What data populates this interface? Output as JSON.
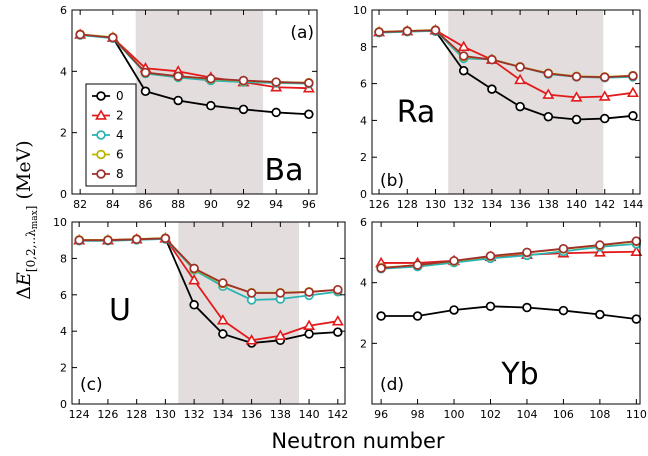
{
  "colors": {
    "0": "#000000",
    "2": "#e31a1c",
    "4": "#2ab3b3",
    "6": "#b8b400",
    "8": "#a0302b",
    "shade": "#e3dedd"
  },
  "xlabel": "Neutron number",
  "ylabel": "ΔE[0,2,..λmax] (MeV)",
  "legend": {
    "placement": "left, inside panel (a)",
    "entries": [
      "0",
      "2",
      "4",
      "6",
      "8"
    ]
  },
  "chart_data": [
    {
      "type": "line",
      "panel": "(a)",
      "element": "Ba",
      "shaded_range": [
        85.4,
        93.2
      ],
      "xlim": [
        81.5,
        96.5
      ],
      "ylim": [
        0,
        6
      ],
      "xticks": [
        82,
        84,
        86,
        88,
        90,
        92,
        94,
        96
      ],
      "yticks": [
        0,
        2,
        4,
        6
      ],
      "x": [
        82,
        84,
        86,
        88,
        90,
        92,
        94,
        96
      ],
      "series": [
        {
          "name": "0",
          "marker": "circle",
          "values": [
            5.2,
            5.1,
            3.35,
            3.05,
            2.88,
            2.76,
            2.66,
            2.6
          ]
        },
        {
          "name": "2",
          "marker": "triangle",
          "values": [
            5.2,
            5.1,
            4.1,
            4.0,
            3.8,
            3.65,
            3.48,
            3.45
          ]
        },
        {
          "name": "4",
          "marker": "circle",
          "values": [
            5.2,
            5.1,
            3.95,
            3.82,
            3.72,
            3.67,
            3.64,
            3.62
          ]
        },
        {
          "name": "6",
          "marker": "circle",
          "values": [
            5.2,
            5.1,
            3.95,
            3.83,
            3.74,
            3.68,
            3.64,
            3.62
          ]
        },
        {
          "name": "8",
          "marker": "circle",
          "values": [
            5.2,
            5.1,
            3.96,
            3.84,
            3.76,
            3.7,
            3.65,
            3.62
          ]
        }
      ]
    },
    {
      "type": "line",
      "panel": "(b)",
      "element": "Ra",
      "shaded_range": [
        130.9,
        141.9
      ],
      "xlim": [
        125.5,
        144.5
      ],
      "ylim": [
        0,
        10
      ],
      "xticks": [
        126,
        128,
        130,
        132,
        134,
        136,
        138,
        140,
        142,
        144
      ],
      "yticks": [
        0,
        2,
        4,
        6,
        8,
        10
      ],
      "x": [
        126,
        128,
        130,
        132,
        134,
        136,
        138,
        140,
        142,
        144
      ],
      "series": [
        {
          "name": "0",
          "marker": "circle",
          "values": [
            8.8,
            8.85,
            8.85,
            6.7,
            5.7,
            4.75,
            4.2,
            4.05,
            4.1,
            4.25
          ]
        },
        {
          "name": "2",
          "marker": "triangle",
          "values": [
            8.8,
            8.85,
            8.9,
            8.0,
            7.3,
            6.2,
            5.4,
            5.25,
            5.3,
            5.5
          ]
        },
        {
          "name": "4",
          "marker": "circle",
          "values": [
            8.8,
            8.85,
            8.9,
            7.4,
            7.35,
            6.95,
            6.55,
            6.4,
            6.35,
            6.4
          ]
        },
        {
          "name": "6",
          "marker": "circle",
          "values": [
            8.8,
            8.85,
            8.9,
            7.45,
            7.3,
            6.9,
            6.55,
            6.38,
            6.35,
            6.42
          ]
        },
        {
          "name": "8",
          "marker": "circle",
          "values": [
            8.8,
            8.85,
            8.9,
            7.5,
            7.3,
            6.9,
            6.55,
            6.38,
            6.35,
            6.42
          ]
        }
      ]
    },
    {
      "type": "line",
      "panel": "(c)",
      "element": "U",
      "shaded_range": [
        130.9,
        139.3
      ],
      "xlim": [
        123.5,
        142.5
      ],
      "ylim": [
        0,
        10
      ],
      "xticks": [
        124,
        126,
        128,
        130,
        132,
        134,
        136,
        138,
        140,
        142
      ],
      "yticks": [
        0,
        2,
        4,
        6,
        8,
        10
      ],
      "x": [
        124,
        126,
        128,
        130,
        132,
        134,
        136,
        138,
        140,
        142
      ],
      "series": [
        {
          "name": "0",
          "marker": "circle",
          "values": [
            9.0,
            9.0,
            9.05,
            9.1,
            5.45,
            3.85,
            3.35,
            3.5,
            3.85,
            3.95
          ]
        },
        {
          "name": "2",
          "marker": "triangle",
          "values": [
            9.0,
            9.0,
            9.05,
            9.1,
            6.8,
            4.6,
            3.5,
            3.75,
            4.3,
            4.55
          ]
        },
        {
          "name": "4",
          "marker": "circle",
          "values": [
            9.0,
            9.0,
            9.05,
            9.1,
            7.4,
            6.5,
            5.75,
            5.8,
            6.0,
            6.2
          ]
        },
        {
          "name": "6",
          "marker": "circle",
          "values": [
            9.0,
            9.0,
            9.05,
            9.1,
            7.4,
            6.6,
            6.1,
            6.1,
            6.15,
            6.25
          ]
        },
        {
          "name": "8",
          "marker": "circle",
          "values": [
            9.0,
            9.0,
            9.05,
            9.1,
            7.45,
            6.65,
            6.1,
            6.1,
            6.15,
            6.28
          ]
        }
      ]
    },
    {
      "type": "line",
      "panel": "(d)",
      "element": "Yb",
      "shaded_range": null,
      "xlim": [
        95.5,
        110.2
      ],
      "ylim": [
        0,
        6
      ],
      "xticks": [
        96,
        98,
        100,
        102,
        104,
        106,
        108,
        110
      ],
      "yticks": [
        2,
        4,
        6
      ],
      "x": [
        96,
        98,
        100,
        102,
        104,
        106,
        108,
        110
      ],
      "series": [
        {
          "name": "0",
          "marker": "circle",
          "values": [
            2.9,
            2.9,
            3.1,
            3.22,
            3.18,
            3.08,
            2.95,
            2.8
          ]
        },
        {
          "name": "2",
          "marker": "triangle",
          "values": [
            4.65,
            4.65,
            4.72,
            4.85,
            4.92,
            4.97,
            5.0,
            5.02
          ]
        },
        {
          "name": "4",
          "marker": "circle",
          "values": [
            4.48,
            4.55,
            4.68,
            4.82,
            4.92,
            5.05,
            5.2,
            5.3
          ]
        },
        {
          "name": "6",
          "marker": "circle",
          "values": [
            4.48,
            4.57,
            4.7,
            4.86,
            4.98,
            5.1,
            5.22,
            5.35
          ]
        },
        {
          "name": "8",
          "marker": "circle",
          "values": [
            4.48,
            4.58,
            4.72,
            4.88,
            5.0,
            5.12,
            5.24,
            5.37
          ]
        }
      ]
    }
  ]
}
